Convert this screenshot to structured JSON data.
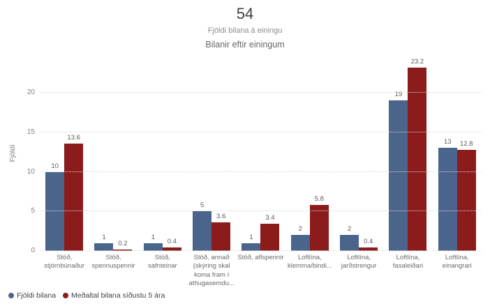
{
  "header": {
    "kpi_value": "54",
    "kpi_subtitle": "Fjöldi bilana á einingu",
    "chart_title": "Bilanir eftir einingum"
  },
  "colors": {
    "series_blue": "#4a648c",
    "series_red": "#8c1c1c",
    "gridline": "#d9d9d9"
  },
  "chart_data": {
    "type": "bar",
    "title": "Bilanir eftir einingum",
    "xlabel": "",
    "ylabel": "Fjöldi",
    "ylim": [
      0,
      20
    ],
    "yticks": [
      0,
      5,
      10,
      15,
      20
    ],
    "grid": "horizontal-dotted",
    "legend_position": "bottom-left",
    "categories": [
      "Stöð, stjórnbúnaður",
      "Stöð, spennuspennir",
      "Stöð, safnteinar",
      "Stöð, annað (skýring skal koma fram í athugasemdu...",
      "Stöð, aflspennir",
      "Loftlína, klemma/bindi...",
      "Loftlína, jarðstrengur",
      "Loftlína, fasaleiðari",
      "Loftlína, einangrari"
    ],
    "series": [
      {
        "name": "Fjöldi bilana",
        "color": "#4a648c",
        "values": [
          10,
          1,
          1,
          5,
          1,
          2,
          2,
          19,
          13
        ]
      },
      {
        "name": "Meðaltal bilana síðustu 5 ára",
        "color": "#8c1c1c",
        "values": [
          13.6,
          0.2,
          0.4,
          3.6,
          3.4,
          5.8,
          0.4,
          23.2,
          12.8
        ]
      }
    ]
  }
}
